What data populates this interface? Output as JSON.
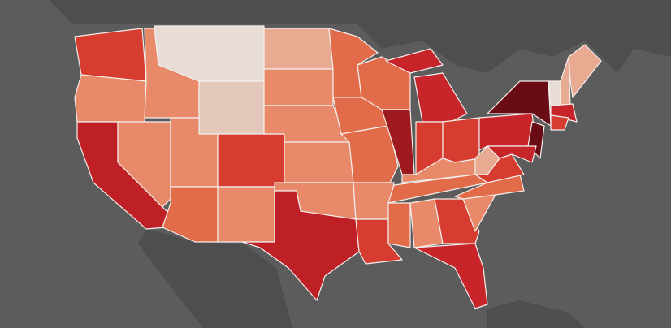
{
  "map": {
    "region_fills": [
      "#d63c30",
      "#e8896a",
      "#bf2026",
      "#e8896a",
      "#e8896a",
      "#e8dcd7",
      "#e3c7bb",
      "#e8896a",
      "#e26b4a",
      "#d63c30",
      "#e8896a",
      "#e8aa90",
      "#e8896a",
      "#e8896a",
      "#e8896a",
      "#e8896a",
      "#bf2026",
      "#e26b4a",
      "#e26b4a",
      "#e26b4a",
      "#e8896a",
      "#d63c30",
      "#e26b4a",
      "#9e1a1f",
      "#c8252b",
      "#c8252b",
      "#d63c30",
      "#d63c30",
      "#e8896a",
      "#e26b4a",
      "#e26b4a",
      "#e8896a",
      "#d63c30",
      "#c8252b",
      "#e8896a",
      "#e26b4a",
      "#d63c30",
      "#e8aa90",
      "#c8252b",
      "#6a0c16",
      "#6a0c16",
      "#c8252b",
      "#e8dcd7",
      "#e8aa90",
      "#e8aa90",
      "#c8252b",
      "#d63c30"
    ]
  }
}
